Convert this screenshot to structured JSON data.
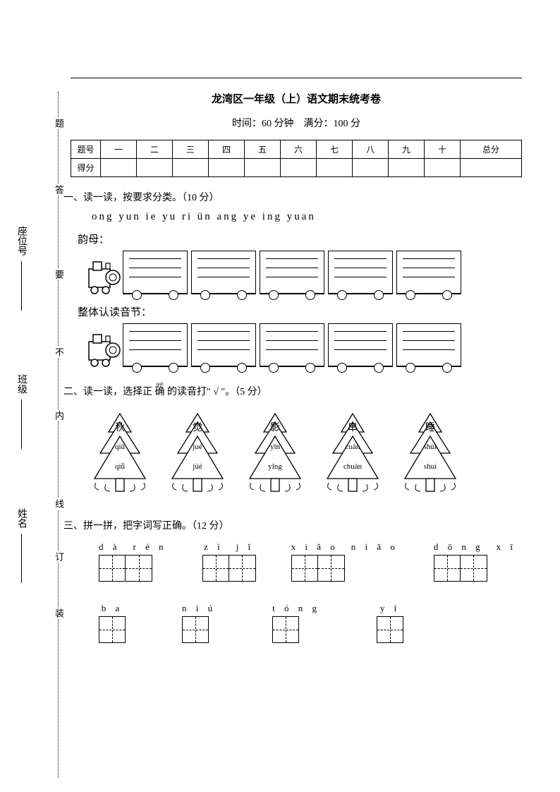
{
  "title": "龙湾区一年级（上）语文期末统考卷",
  "subtitle": "时间：60 分钟　满分：100 分",
  "score_table": {
    "row1": [
      "题号",
      "一",
      "二",
      "三",
      "四",
      "五",
      "六",
      "七",
      "八",
      "九",
      "十",
      "总分"
    ],
    "row2_label": "得分"
  },
  "q1": {
    "heading": "一、读一读，按要求分类。（10 分）",
    "pinyin_line": "ong  yun  ie  yu  ri  ün  ang  ye  ing  yuan",
    "label_a": "韵母：",
    "label_b": "整体认读音节：",
    "wagon_count": 5
  },
  "q2": {
    "heading_pre": "二、读一读，选择正 ",
    "heading_ruby_base": "确",
    "heading_ruby_rt": "què",
    "heading_post": " 的读音打\" √ \"。（5 分）",
    "trees": [
      {
        "char": "秋",
        "p1": "qiū",
        "p2": "qiǖ"
      },
      {
        "char": "觉",
        "p1": "jué",
        "p2": "jüé"
      },
      {
        "char": "影",
        "p1": "yīn",
        "p2": "yǐng"
      },
      {
        "char": "串",
        "p1": "cuàn",
        "p2": "chuàn"
      },
      {
        "char": "睡",
        "p1": "shùi",
        "p2": "shuì"
      }
    ]
  },
  "q3": {
    "heading": "三、拼一拼，把字词写正确。（12 分）",
    "row1": [
      {
        "pinyin": "d à　r é n",
        "boxes": 2
      },
      {
        "pinyin": "z ì　j ǐ",
        "boxes": 2
      },
      {
        "pinyin": "x i ǎ o　n i ǎ o",
        "boxes": 2
      },
      {
        "pinyin": "d ō n g　x ī",
        "boxes": 2
      }
    ],
    "row2": [
      {
        "pinyin": "b a",
        "boxes": 1
      },
      {
        "pinyin": "n i ú",
        "boxes": 1
      },
      {
        "pinyin": "t ó n g",
        "boxes": 1
      },
      {
        "pinyin": "y ī",
        "boxes": 1
      }
    ]
  },
  "binding": {
    "words": [
      "装",
      "订",
      "线",
      "内",
      "不",
      "要",
      "答",
      "题"
    ],
    "fields": [
      "姓名",
      "班级",
      "座位号"
    ]
  },
  "colors": {
    "text": "#000000",
    "background": "#ffffff",
    "border": "#000000"
  }
}
